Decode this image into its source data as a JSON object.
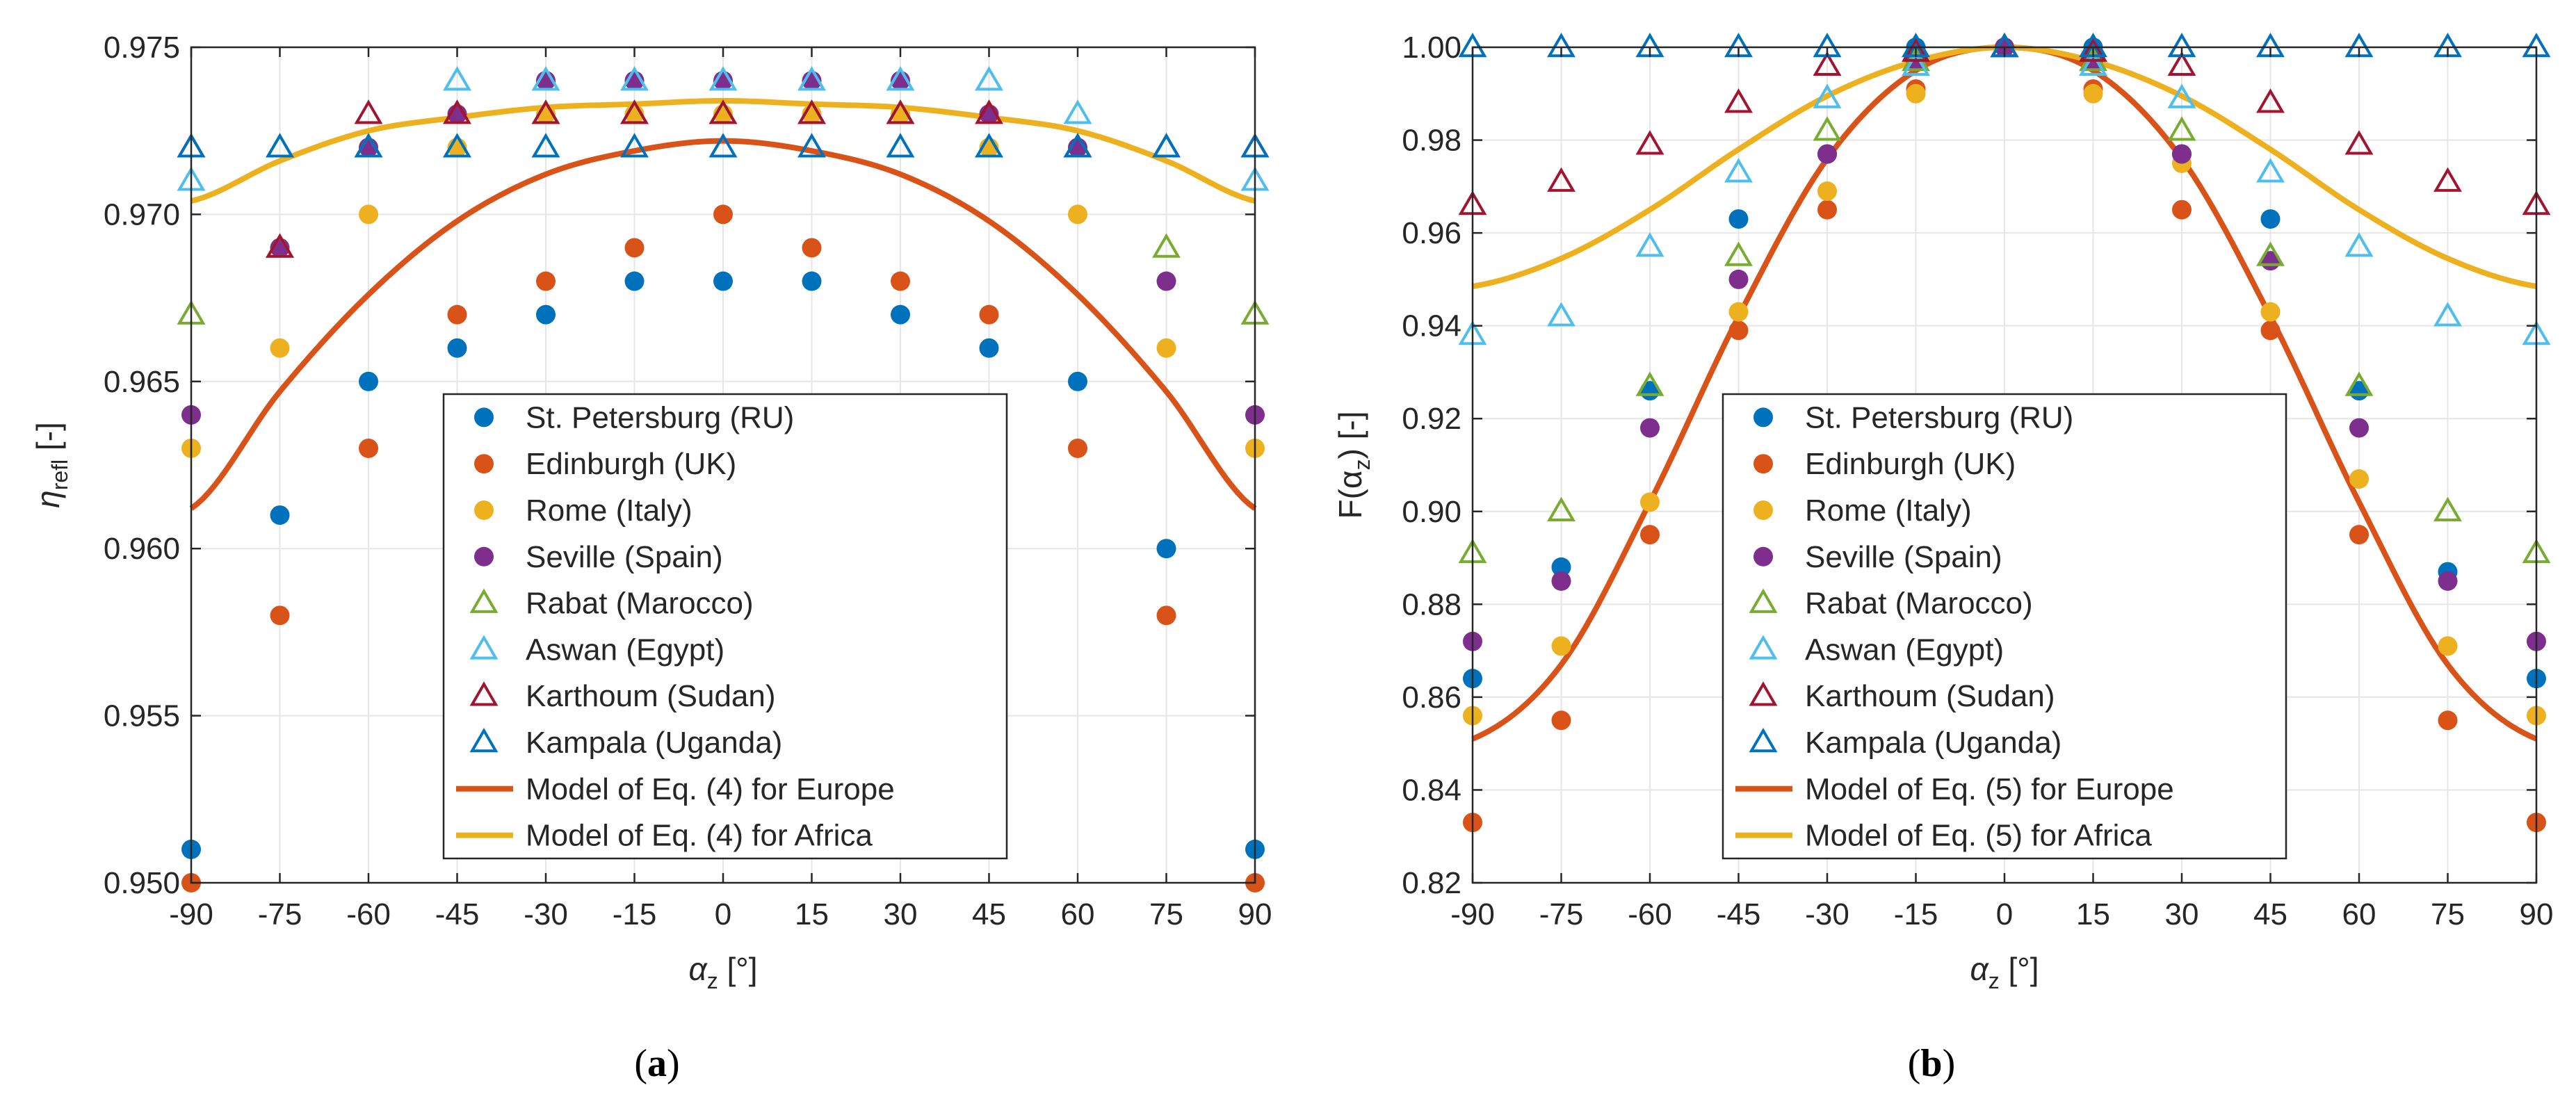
{
  "chart_data": [
    {
      "id": "a",
      "type": "scatter",
      "panel_label": "a",
      "xlabel": "α",
      "xlabel_sub": "z",
      "xlabel_unit": " [°]",
      "ylabel": "η",
      "ylabel_sub": "refl",
      "ylabel_unit": " [-]",
      "xlim": [
        -90,
        90
      ],
      "ylim": [
        0.95,
        0.975
      ],
      "xticks": [
        -90,
        -75,
        -60,
        -45,
        -30,
        -15,
        0,
        15,
        30,
        45,
        60,
        75,
        90
      ],
      "xtick_labels": [
        "-90",
        "-75",
        "-60",
        "-45",
        "-30",
        "-15",
        "0",
        "15",
        "30",
        "45",
        "60",
        "75",
        "90"
      ],
      "yticks": [
        0.95,
        0.955,
        0.96,
        0.965,
        0.97,
        0.975
      ],
      "ytick_labels": [
        "0.950",
        "0.955",
        "0.960",
        "0.965",
        "0.970",
        "0.975"
      ],
      "grid": true,
      "legend_position": "center-bottom",
      "x": [
        -90,
        -75,
        -60,
        -45,
        -30,
        -15,
        0,
        15,
        30,
        45,
        60,
        75,
        90
      ],
      "series": [
        {
          "name": "St. Petersburg (RU)",
          "marker": "circle",
          "color": "#0072BD",
          "values": [
            0.951,
            0.961,
            0.965,
            0.966,
            0.967,
            0.968,
            0.968,
            0.968,
            0.967,
            0.966,
            0.965,
            0.96,
            0.951
          ]
        },
        {
          "name": "Edinburgh (UK)",
          "marker": "circle",
          "color": "#D95319",
          "values": [
            0.95,
            0.958,
            0.963,
            0.967,
            0.968,
            0.969,
            0.97,
            0.969,
            0.968,
            0.967,
            0.963,
            0.958,
            0.95
          ]
        },
        {
          "name": "Rome (Italy)",
          "marker": "circle",
          "color": "#EDB120",
          "values": [
            0.963,
            0.966,
            0.97,
            0.972,
            0.973,
            0.973,
            0.973,
            0.973,
            0.973,
            0.972,
            0.97,
            0.966,
            0.963
          ]
        },
        {
          "name": "Seville (Spain)",
          "marker": "circle",
          "color": "#7E2F8E",
          "values": [
            0.964,
            0.969,
            0.972,
            0.973,
            0.974,
            0.974,
            0.974,
            0.974,
            0.974,
            0.973,
            0.972,
            0.968,
            0.964
          ]
        },
        {
          "name": "Rabat (Marocco)",
          "marker": "triangle",
          "color": "#77AC30",
          "values": [
            0.967,
            0.969,
            0.972,
            0.972,
            0.973,
            0.973,
            0.973,
            0.973,
            0.973,
            0.972,
            0.972,
            0.969,
            0.967
          ]
        },
        {
          "name": "Aswan (Egypt)",
          "marker": "triangle",
          "color": "#4DBEEE",
          "values": [
            0.971,
            0.972,
            0.972,
            0.974,
            0.974,
            0.974,
            0.974,
            0.974,
            0.974,
            0.974,
            0.973,
            0.972,
            0.971
          ]
        },
        {
          "name": "Karthoum (Sudan)",
          "marker": "triangle",
          "color": "#A2142F",
          "values": [
            0.972,
            0.969,
            0.973,
            0.973,
            0.973,
            0.973,
            0.973,
            0.973,
            0.973,
            0.973,
            0.972,
            0.972,
            0.972
          ]
        },
        {
          "name": "Kampala (Uganda)",
          "marker": "triangle",
          "color": "#0072BD",
          "values": [
            0.972,
            0.972,
            0.972,
            0.972,
            0.972,
            0.972,
            0.972,
            0.972,
            0.972,
            0.972,
            0.972,
            0.972,
            0.972
          ]
        }
      ],
      "lines": [
        {
          "name": "Model of Eq. (4) for Europe",
          "color": "#D95319",
          "x": [
            -90,
            -75,
            -60,
            -45,
            -30,
            -15,
            0,
            15,
            30,
            45,
            60,
            75,
            90
          ],
          "values": [
            0.9612,
            0.9647,
            0.9676,
            0.9698,
            0.9712,
            0.9719,
            0.9722,
            0.9719,
            0.9712,
            0.9698,
            0.9676,
            0.9647,
            0.9612
          ]
        },
        {
          "name": "Model of Eq. (4) for Africa",
          "color": "#EDB120",
          "x": [
            -90,
            -75,
            -60,
            -45,
            -30,
            -15,
            0,
            15,
            30,
            45,
            60,
            75,
            90
          ],
          "values": [
            0.9704,
            0.9716,
            0.9725,
            0.9729,
            0.9732,
            0.9733,
            0.9734,
            0.9733,
            0.9732,
            0.9729,
            0.9725,
            0.9716,
            0.9704
          ]
        }
      ]
    },
    {
      "id": "b",
      "type": "scatter",
      "panel_label": "b",
      "xlabel": "α",
      "xlabel_sub": "z",
      "xlabel_unit": " [°]",
      "ylabel": "F(α",
      "ylabel_sub": "z",
      "ylabel_unit": ") [-]",
      "xlim": [
        -90,
        90
      ],
      "ylim": [
        0.82,
        1.0
      ],
      "xticks": [
        -90,
        -75,
        -60,
        -45,
        -30,
        -15,
        0,
        15,
        30,
        45,
        60,
        75,
        90
      ],
      "xtick_labels": [
        "-90",
        "-75",
        "-60",
        "-45",
        "-30",
        "-15",
        "0",
        "15",
        "30",
        "45",
        "60",
        "75",
        "90"
      ],
      "yticks": [
        0.82,
        0.84,
        0.86,
        0.88,
        0.9,
        0.92,
        0.94,
        0.96,
        0.98,
        1.0
      ],
      "ytick_labels": [
        "0.82",
        "0.84",
        "0.86",
        "0.88",
        "0.90",
        "0.92",
        "0.94",
        "0.96",
        "0.98",
        "1.00"
      ],
      "grid": true,
      "legend_position": "center-bottom",
      "x": [
        -90,
        -75,
        -60,
        -45,
        -30,
        -15,
        0,
        15,
        30,
        45,
        60,
        75,
        90
      ],
      "series": [
        {
          "name": "St. Petersburg (RU)",
          "marker": "circle",
          "color": "#0072BD",
          "values": [
            0.864,
            0.888,
            0.926,
            0.963,
            0.977,
            1.0,
            1.0,
            1.0,
            0.977,
            0.963,
            0.926,
            0.887,
            0.864
          ]
        },
        {
          "name": "Edinburgh (UK)",
          "marker": "circle",
          "color": "#D95319",
          "values": [
            0.833,
            0.855,
            0.895,
            0.939,
            0.965,
            0.991,
            1.0,
            0.991,
            0.965,
            0.939,
            0.895,
            0.855,
            0.833
          ]
        },
        {
          "name": "Rome (Italy)",
          "marker": "circle",
          "color": "#EDB120",
          "values": [
            0.856,
            0.871,
            0.902,
            0.943,
            0.969,
            0.99,
            1.0,
            0.99,
            0.975,
            0.943,
            0.907,
            0.871,
            0.856
          ]
        },
        {
          "name": "Seville (Spain)",
          "marker": "circle",
          "color": "#7E2F8E",
          "values": [
            0.872,
            0.885,
            0.918,
            0.95,
            0.977,
            0.997,
            1.0,
            0.997,
            0.977,
            0.954,
            0.918,
            0.885,
            0.872
          ]
        },
        {
          "name": "Rabat (Marocco)",
          "marker": "triangle",
          "color": "#77AC30",
          "values": [
            0.891,
            0.9,
            0.927,
            0.955,
            0.982,
            0.997,
            1.0,
            0.997,
            0.982,
            0.955,
            0.927,
            0.9,
            0.891
          ]
        },
        {
          "name": "Aswan (Egypt)",
          "marker": "triangle",
          "color": "#4DBEEE",
          "values": [
            0.938,
            0.942,
            0.957,
            0.973,
            0.989,
            0.996,
            1.0,
            0.996,
            0.989,
            0.973,
            0.957,
            0.942,
            0.938
          ]
        },
        {
          "name": "Karthoum (Sudan)",
          "marker": "triangle",
          "color": "#A2142F",
          "values": [
            0.966,
            0.971,
            0.979,
            0.988,
            0.996,
            0.999,
            1.0,
            0.999,
            0.996,
            0.988,
            0.979,
            0.971,
            0.966
          ]
        },
        {
          "name": "Kampala (Uganda)",
          "marker": "triangle",
          "color": "#0072BD",
          "values": [
            1.0,
            1.0,
            1.0,
            1.0,
            1.0,
            1.0,
            1.0,
            1.0,
            1.0,
            1.0,
            1.0,
            1.0,
            1.0
          ]
        }
      ],
      "lines": [
        {
          "name": "Model of Eq. (5) for Europe",
          "color": "#D95319",
          "x": [
            -90,
            -75,
            -60,
            -45,
            -30,
            -15,
            0,
            15,
            30,
            45,
            60,
            75,
            90
          ],
          "values": [
            0.851,
            0.867,
            0.902,
            0.942,
            0.976,
            0.995,
            1.0,
            0.995,
            0.976,
            0.942,
            0.902,
            0.867,
            0.851
          ]
        },
        {
          "name": "Model of Eq. (5) for Africa",
          "color": "#EDB120",
          "x": [
            -90,
            -75,
            -60,
            -45,
            -30,
            -15,
            0,
            15,
            30,
            45,
            60,
            75,
            90
          ],
          "values": [
            0.9485,
            0.9545,
            0.965,
            0.978,
            0.9895,
            0.997,
            1.0,
            0.997,
            0.9895,
            0.978,
            0.965,
            0.9545,
            0.9485
          ]
        }
      ]
    }
  ]
}
